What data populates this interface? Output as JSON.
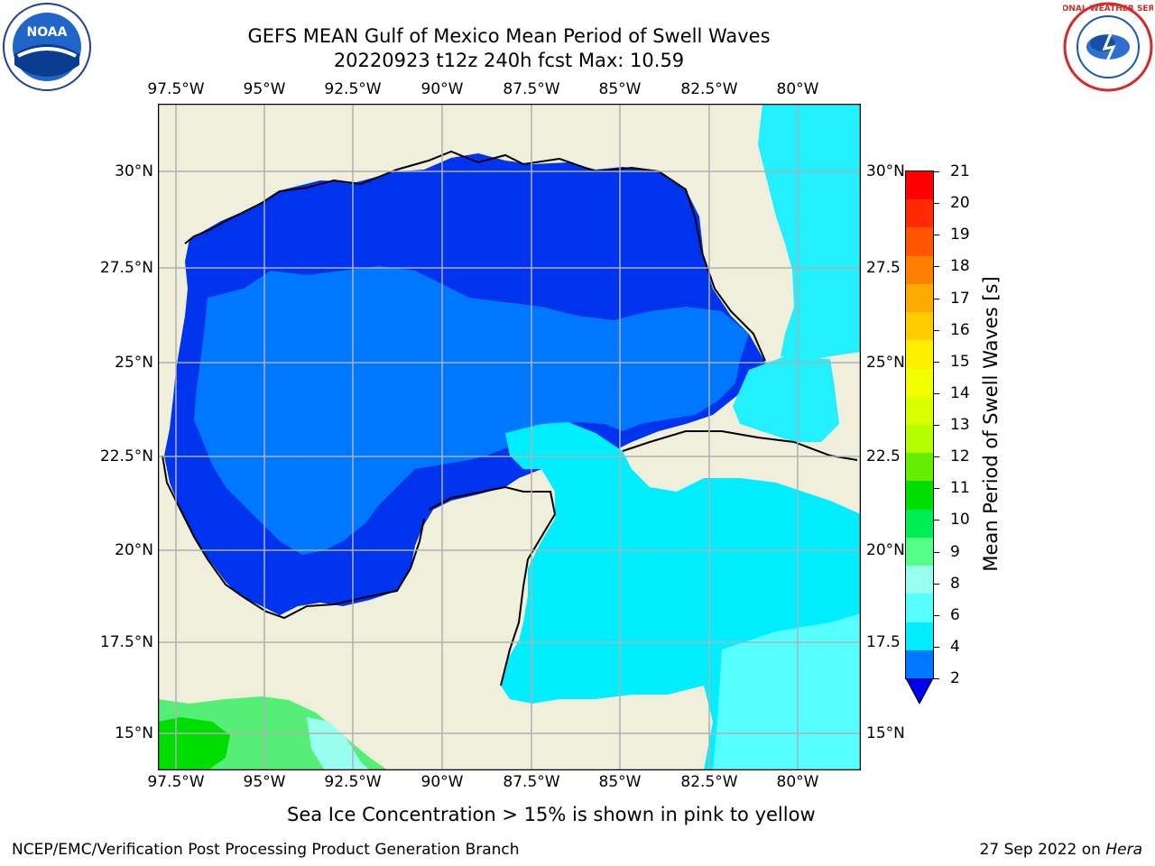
{
  "header": {
    "title_line1": "GEFS MEAN Gulf of Mexico Mean Period of Swell Waves",
    "title_line2": "20220923 t12z 240h fcst   Max: 10.59"
  },
  "logos": {
    "left_logo_text": "NOAA",
    "right_logo_text": "NATIONAL WEATHER SERVICE"
  },
  "map": {
    "lon_labels": [
      "97.5°W",
      "95°W",
      "92.5°W",
      "90°W",
      "87.5°W",
      "85°W",
      "82.5°W",
      "80°W"
    ],
    "lat_labels_left": [
      "30°N",
      "27.5°N",
      "25°N",
      "22.5°N",
      "20°N",
      "17.5°N",
      "15°N"
    ],
    "lat_labels_right": [
      "30°N",
      "27.5",
      "25°N",
      "22.5",
      "20°N",
      "17.5",
      "15°N"
    ],
    "land_color": "#efefdb",
    "gridline_color": "#b0b0b0"
  },
  "colorbar": {
    "label": "Mean Period of Swell Waves [s]",
    "ticks": [
      "21",
      "20",
      "19",
      "18",
      "17",
      "16",
      "15",
      "14",
      "13",
      "12",
      "11",
      "10",
      "9",
      "8",
      "6",
      "4",
      "2"
    ],
    "colors_top_to_bottom": [
      "#ff0000",
      "#ff2a00",
      "#ff5500",
      "#ff7f00",
      "#ffaa00",
      "#ffcc00",
      "#ffee00",
      "#f2ff00",
      "#d9ff00",
      "#b3ff00",
      "#66ee00",
      "#00dd00",
      "#00ee55",
      "#55ff88",
      "#99ffee",
      "#55ffff",
      "#00eeff",
      "#0077ff"
    ],
    "extend_color": "#0000ee"
  },
  "notes": {
    "sea_ice": "Sea Ice Concentration > 15% is shown in pink to yellow"
  },
  "footer": {
    "left": "NCEP/EMC/Verification Post Processing Product Generation Branch",
    "right_prefix": "27 Sep 2022 on ",
    "right_machine": "Hera"
  }
}
